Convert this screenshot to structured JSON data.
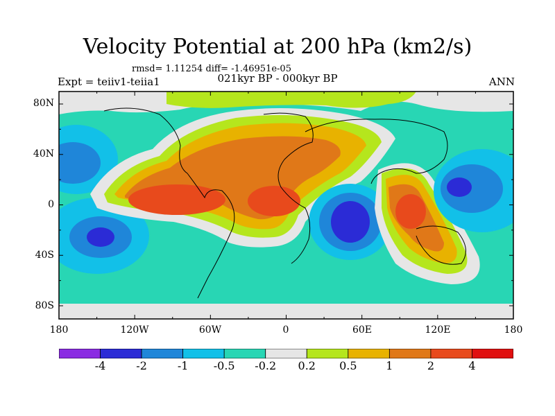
{
  "header": {
    "title": "Velocity Potential at 200 hPa (km2/s)",
    "stats": "rmsd= 1.11254  diff= -1.46951e-05",
    "subtitle": "021kyr BP - 000kyr BP",
    "left_label": "Expt = teiiv1-teiia1",
    "right_label": "ANN"
  },
  "map": {
    "lat_labels": [
      "80N",
      "40N",
      "0",
      "40S",
      "80S"
    ],
    "lon_labels": [
      "180",
      "120W",
      "60W",
      "0",
      "60E",
      "120E",
      "180"
    ]
  },
  "colorbar": {
    "levels": [
      "-4",
      "-2",
      "-1",
      "-0.5",
      "-0.2",
      "0.2",
      "0.5",
      "1",
      "2",
      "4"
    ],
    "colors": [
      "#8a2be2",
      "#2b2bd6",
      "#1f86d9",
      "#12c0e8",
      "#28d6b4",
      "#e6e6e6",
      "#b5e61d",
      "#e8b200",
      "#e07818",
      "#e84a1c",
      "#e01010"
    ]
  },
  "colors": {
    "zero_band": "#e6e6e6",
    "coastline": "#000000"
  }
}
